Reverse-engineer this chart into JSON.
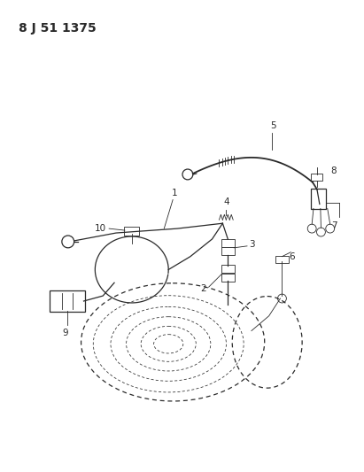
{
  "title": "8 J 51 1375",
  "bg_color": "#ffffff",
  "line_color": "#2a2a2a",
  "title_fontsize": 10,
  "label_fontsize": 7.5,
  "figsize": [
    4.11,
    5.33
  ],
  "dpi": 100
}
